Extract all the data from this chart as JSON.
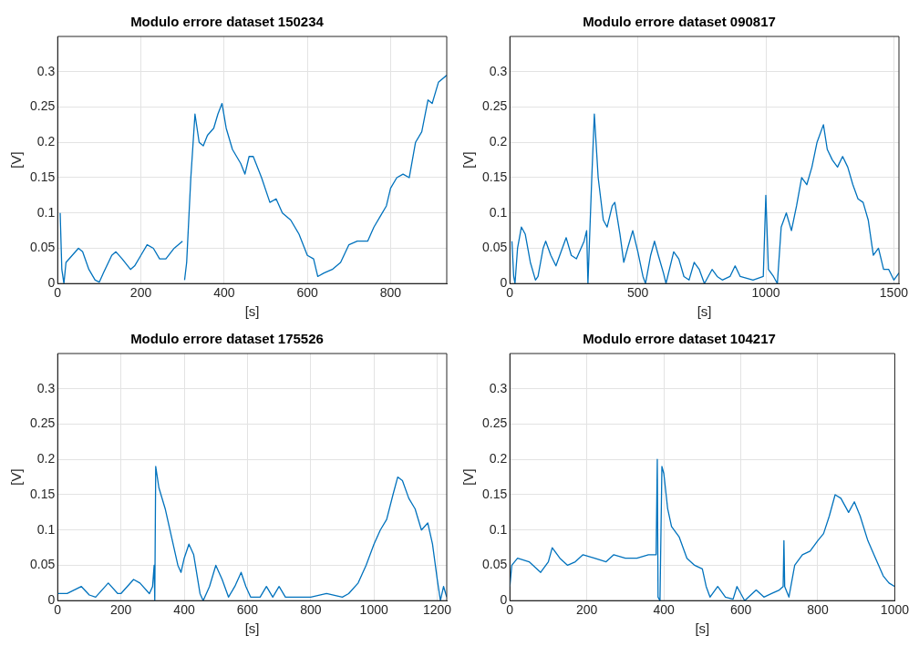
{
  "chart_data": [
    {
      "type": "line",
      "title": "Modulo errore dataset 150234",
      "xlabel": "[s]",
      "ylabel": "[V]",
      "color": "#0072bd",
      "grid": true,
      "xlim": [
        0,
        935
      ],
      "xticks": [
        0,
        200,
        400,
        600,
        800
      ],
      "ylim": [
        0,
        0.35
      ],
      "yticks": [
        0,
        0.05,
        0.1,
        0.15,
        0.2,
        0.25,
        0.3
      ],
      "x": [
        6,
        10,
        15,
        20,
        35,
        50,
        60,
        75,
        90,
        100,
        110,
        130,
        140,
        155,
        175,
        185,
        200,
        215,
        230,
        245,
        260,
        280,
        300,
        303,
        305,
        310,
        320,
        330,
        340,
        350,
        360,
        375,
        385,
        395,
        405,
        420,
        440,
        450,
        460,
        470,
        490,
        510,
        525,
        540,
        560,
        580,
        600,
        615,
        625,
        640,
        660,
        680,
        700,
        720,
        745,
        760,
        775,
        790,
        800,
        815,
        830,
        845,
        860,
        875,
        890,
        900,
        915,
        935
      ],
      "values": [
        0.1,
        0.02,
        0,
        0.03,
        0.04,
        0.05,
        0.045,
        0.02,
        0.005,
        0.002,
        0.015,
        0.04,
        0.045,
        0.035,
        0.02,
        0.025,
        0.04,
        0.055,
        0.05,
        0.035,
        0.035,
        0.05,
        0.06,
        null,
        0.005,
        0.03,
        0.15,
        0.24,
        0.2,
        0.195,
        0.21,
        0.22,
        0.24,
        0.255,
        0.22,
        0.19,
        0.17,
        0.155,
        0.18,
        0.18,
        0.15,
        0.115,
        0.12,
        0.1,
        0.09,
        0.07,
        0.04,
        0.035,
        0.01,
        0.015,
        0.02,
        0.03,
        0.055,
        0.06,
        0.06,
        0.08,
        0.095,
        0.11,
        0.135,
        0.15,
        0.155,
        0.15,
        0.2,
        0.215,
        0.26,
        0.255,
        0.285,
        0.295
      ]
    },
    {
      "type": "line",
      "title": "Modulo errore dataset 090817",
      "xlabel": "[s]",
      "ylabel": "[V]",
      "color": "#0072bd",
      "grid": true,
      "xlim": [
        0,
        1520
      ],
      "xticks": [
        0,
        500,
        1000,
        1500
      ],
      "ylim": [
        0,
        0.35
      ],
      "yticks": [
        0,
        0.05,
        0.1,
        0.15,
        0.2,
        0.25,
        0.3
      ],
      "x": [
        8,
        15,
        20,
        30,
        45,
        60,
        80,
        100,
        110,
        130,
        140,
        160,
        180,
        200,
        220,
        240,
        260,
        290,
        300,
        305,
        320,
        330,
        345,
        365,
        380,
        400,
        410,
        430,
        445,
        460,
        480,
        500,
        520,
        530,
        550,
        565,
        580,
        600,
        610,
        640,
        660,
        680,
        700,
        720,
        740,
        760,
        790,
        810,
        830,
        860,
        880,
        900,
        950,
        990,
        1000,
        1010,
        1030,
        1045,
        1060,
        1080,
        1100,
        1120,
        1140,
        1160,
        1180,
        1200,
        1225,
        1240,
        1260,
        1280,
        1300,
        1320,
        1340,
        1360,
        1380,
        1400,
        1420,
        1440,
        1460,
        1480,
        1500,
        1520
      ],
      "values": [
        0.06,
        0.01,
        0,
        0.05,
        0.08,
        0.07,
        0.03,
        0.005,
        0.01,
        0.05,
        0.06,
        0.04,
        0.025,
        0.045,
        0.065,
        0.04,
        0.035,
        0.06,
        0.075,
        0,
        0.15,
        0.24,
        0.15,
        0.09,
        0.08,
        0.11,
        0.115,
        0.07,
        0.03,
        0.05,
        0.075,
        0.045,
        0.01,
        0,
        0.04,
        0.06,
        0.04,
        0.015,
        0,
        0.045,
        0.035,
        0.01,
        0.005,
        0.03,
        0.02,
        0,
        0.02,
        0.01,
        0.005,
        0.01,
        0.025,
        0.01,
        0.005,
        0.01,
        0.125,
        0.02,
        0.01,
        0,
        0.08,
        0.1,
        0.075,
        0.11,
        0.15,
        0.14,
        0.165,
        0.2,
        0.225,
        0.19,
        0.175,
        0.165,
        0.18,
        0.165,
        0.14,
        0.12,
        0.115,
        0.09,
        0.04,
        0.05,
        0.02,
        0.02,
        0.005,
        0.015
      ]
    },
    {
      "type": "line",
      "title": "Modulo errore dataset 175526",
      "xlabel": "[s]",
      "ylabel": "[V]",
      "color": "#0072bd",
      "grid": true,
      "xlim": [
        0,
        1230
      ],
      "xticks": [
        0,
        200,
        400,
        600,
        800,
        1000,
        1200
      ],
      "ylim": [
        0,
        0.35
      ],
      "yticks": [
        0,
        0.05,
        0.1,
        0.15,
        0.2,
        0.25,
        0.3
      ],
      "x": [
        0,
        30,
        75,
        100,
        120,
        160,
        190,
        200,
        240,
        260,
        290,
        300,
        305,
        307,
        310,
        320,
        340,
        360,
        380,
        390,
        400,
        415,
        430,
        450,
        460,
        480,
        500,
        520,
        540,
        560,
        580,
        595,
        610,
        640,
        660,
        680,
        700,
        720,
        800,
        850,
        900,
        920,
        950,
        975,
        1000,
        1020,
        1040,
        1060,
        1075,
        1090,
        1110,
        1130,
        1150,
        1170,
        1185,
        1200,
        1210,
        1220,
        1230
      ],
      "values": [
        0.01,
        0.01,
        0.02,
        0.008,
        0.005,
        0.025,
        0.01,
        0.01,
        0.03,
        0.025,
        0.01,
        0.02,
        0.05,
        0,
        0.19,
        0.16,
        0.13,
        0.09,
        0.05,
        0.04,
        0.06,
        0.08,
        0.065,
        0.01,
        0,
        0.02,
        0.05,
        0.03,
        0.005,
        0.02,
        0.04,
        0.02,
        0.005,
        0.005,
        0.02,
        0.005,
        0.02,
        0.005,
        0.005,
        0.01,
        0.005,
        0.01,
        0.025,
        0.05,
        0.08,
        0.1,
        0.115,
        0.15,
        0.175,
        0.17,
        0.145,
        0.13,
        0.1,
        0.11,
        0.08,
        0.03,
        0,
        0.02,
        0.005
      ]
    },
    {
      "type": "line",
      "title": "Modulo errore dataset 104217",
      "xlabel": "[s]",
      "ylabel": "[V]",
      "color": "#0072bd",
      "grid": true,
      "xlim": [
        0,
        1000
      ],
      "xticks": [
        0,
        200,
        400,
        600,
        800,
        1000
      ],
      "ylim": [
        0,
        0.35
      ],
      "yticks": [
        0,
        0.05,
        0.1,
        0.15,
        0.2,
        0.25,
        0.3
      ],
      "x": [
        0,
        5,
        20,
        50,
        80,
        100,
        110,
        130,
        150,
        170,
        190,
        220,
        250,
        270,
        300,
        330,
        360,
        380,
        383,
        385,
        390,
        395,
        400,
        410,
        420,
        440,
        460,
        480,
        500,
        510,
        520,
        540,
        560,
        580,
        590,
        610,
        640,
        660,
        680,
        700,
        710,
        712,
        714,
        725,
        740,
        760,
        780,
        800,
        815,
        830,
        845,
        860,
        880,
        895,
        910,
        930,
        950,
        970,
        985,
        1000
      ],
      "values": [
        0.02,
        0.05,
        0.06,
        0.055,
        0.04,
        0.055,
        0.075,
        0.06,
        0.05,
        0.055,
        0.065,
        0.06,
        0.055,
        0.065,
        0.06,
        0.06,
        0.065,
        0.065,
        0.2,
        0.005,
        0,
        0.19,
        0.18,
        0.13,
        0.105,
        0.09,
        0.06,
        0.05,
        0.045,
        0.02,
        0.005,
        0.02,
        0.005,
        0.002,
        0.02,
        0,
        0.015,
        0.005,
        0.01,
        0.015,
        0.02,
        0.085,
        0.02,
        0.005,
        0.05,
        0.065,
        0.07,
        0.085,
        0.095,
        0.12,
        0.15,
        0.145,
        0.125,
        0.14,
        0.12,
        0.085,
        0.06,
        0.035,
        0.025,
        0.02
      ]
    }
  ]
}
